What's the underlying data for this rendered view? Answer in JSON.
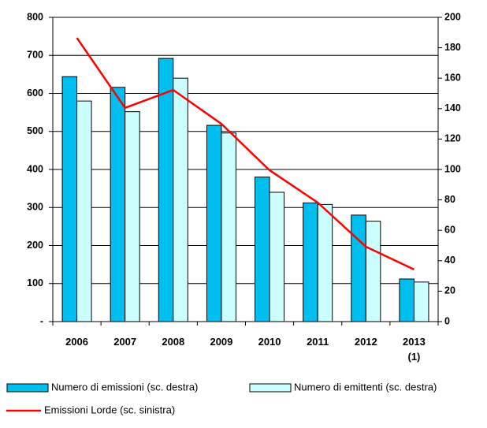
{
  "chart_data": {
    "type": "bar",
    "categories": [
      "2006",
      "2007",
      "2008",
      "2009",
      "2010",
      "2011",
      "2012",
      "2013 (1)"
    ],
    "series": [
      {
        "name": "Numero di emissioni (sc. destra)",
        "color": "#00bfef",
        "axis": "y2",
        "values": [
          161,
          154,
          173,
          129,
          95,
          78,
          70,
          28
        ]
      },
      {
        "name": "Numero di emittenti (sc. destra)",
        "color": "#ccffff",
        "axis": "y2",
        "values": [
          145,
          138,
          160,
          124,
          85,
          77,
          66,
          26
        ]
      },
      {
        "name": "Emissioni Lorde (sc. sinistra)",
        "color": "#ff0000",
        "type": "line",
        "values": [
          746,
          562,
          609,
          520,
          398,
          313,
          197,
          137
        ]
      }
    ],
    "ylim": [
      0,
      800
    ],
    "yticks": [
      {
        "value": 0,
        "label": "-"
      },
      100,
      200,
      300,
      400,
      500,
      600,
      700,
      800
    ],
    "y2lim": [
      0,
      200
    ],
    "y2ticks": [
      0,
      20,
      40,
      60,
      80,
      100,
      120,
      140,
      160,
      180,
      200
    ],
    "grid": true
  }
}
